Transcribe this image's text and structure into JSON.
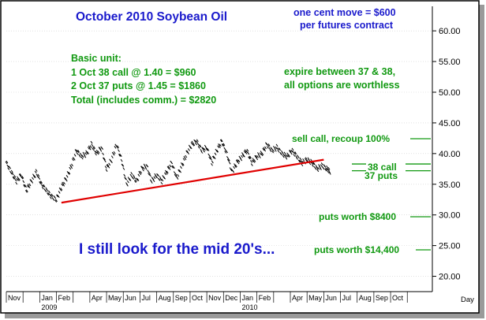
{
  "chart_data": {
    "type": "line",
    "title": "October 2010 Soybean Oil",
    "ylim": [
      17.5,
      64
    ],
    "y_ticks": [
      "60.00",
      "55.00",
      "50.00",
      "45.00",
      "40.00",
      "35.00",
      "30.00",
      "25.00",
      "20.00"
    ],
    "y_tick_values": [
      60,
      55,
      50,
      45,
      40,
      35,
      30,
      25,
      20
    ],
    "x_label_right": "Day",
    "x_month_labels": [
      "Nov",
      "Jan",
      "Feb",
      "Apr",
      "May",
      "Jun",
      "Jul",
      "Aug",
      "Sep",
      "Oct",
      "Nov",
      "Dec",
      "Jan",
      "Feb",
      "Apr",
      "May",
      "Jun",
      "Jul",
      "Aug",
      "Sep",
      "Oct"
    ],
    "x_month_index": [
      0,
      2,
      3,
      5,
      6,
      7,
      8,
      9,
      10,
      11,
      12,
      13,
      14,
      15,
      17,
      18,
      19,
      20,
      21,
      22,
      23
    ],
    "x_year_labels": [
      "2009",
      "2010"
    ],
    "x_year_index": [
      2,
      14
    ],
    "x_range_months": [
      0,
      25.5
    ],
    "series": [
      {
        "x": [
          0,
          0.3,
          0.6,
          0.9,
          1.2,
          1.5,
          1.8,
          2.1,
          2.4,
          2.7,
          3.0,
          3.3,
          3.6,
          3.9,
          4.2,
          4.5,
          4.8,
          5.1,
          5.4,
          5.7,
          6.0,
          6.3,
          6.6,
          6.9,
          7.2,
          7.5,
          7.8,
          8.1,
          8.4,
          8.7,
          9.0,
          9.3,
          9.6,
          9.9,
          10.2,
          10.5,
          10.8,
          11.1,
          11.4,
          11.7,
          12.0,
          12.3,
          12.6,
          12.9,
          13.2,
          13.5,
          13.8,
          14.1,
          14.4,
          14.7,
          15.0,
          15.3,
          15.6,
          15.9,
          16.2,
          16.5,
          16.8,
          17.1,
          17.4,
          17.7,
          18.0,
          18.3,
          18.6,
          18.9,
          19.2,
          19.4
        ],
        "values": [
          38.5,
          37.0,
          35.5,
          36.5,
          34.0,
          35.5,
          37.0,
          35.0,
          34.0,
          33.0,
          32.5,
          34.5,
          36.0,
          38.0,
          40.5,
          39.5,
          40.0,
          41.5,
          40.0,
          41.0,
          37.5,
          39.0,
          41.5,
          39.0,
          35.0,
          36.5,
          35.5,
          37.5,
          38.0,
          35.5,
          36.5,
          35.5,
          37.0,
          38.5,
          36.0,
          38.0,
          40.0,
          41.5,
          42.0,
          40.5,
          41.0,
          38.5,
          40.5,
          42.0,
          40.0,
          37.0,
          38.5,
          39.5,
          40.5,
          38.5,
          39.5,
          40.0,
          41.5,
          40.5,
          41.0,
          40.0,
          39.5,
          40.5,
          39.5,
          38.5,
          39.0,
          38.5,
          37.5,
          38.0,
          37.5,
          37.0
        ]
      }
    ],
    "trendline": {
      "x": [
        3.3,
        19.0
      ],
      "values": [
        32.0,
        39.0
      ]
    },
    "strike_lines": [
      {
        "label": "38 call",
        "value": 38.3
      },
      {
        "label": "37 puts",
        "value": 37.2
      }
    ],
    "annotations": {
      "contract": [
        "one cent move = $600",
        "per futures contract"
      ],
      "basic_unit": [
        "Basic unit:",
        "1 Oct 38 call @ 1.40   =  $960",
        "2 Oct 37 puts @ 1.45  =  $1860",
        "Total (includes comm.) = $2820"
      ],
      "expire": [
        "expire between 37 & 38,",
        "all options are worthless"
      ],
      "sell_call": "sell call, recoup 100%",
      "call_label": "38 call",
      "puts_label": "37 puts",
      "puts_8400": "puts worth $8400",
      "puts_14400": "puts worth $14,400",
      "mid20s": "I still look for the mid 20's..."
    },
    "colors": {
      "price": "#000000",
      "trend": "#e00000",
      "blue_text": "#1a1acc",
      "green_text": "#119911",
      "axis": "#000000"
    }
  }
}
